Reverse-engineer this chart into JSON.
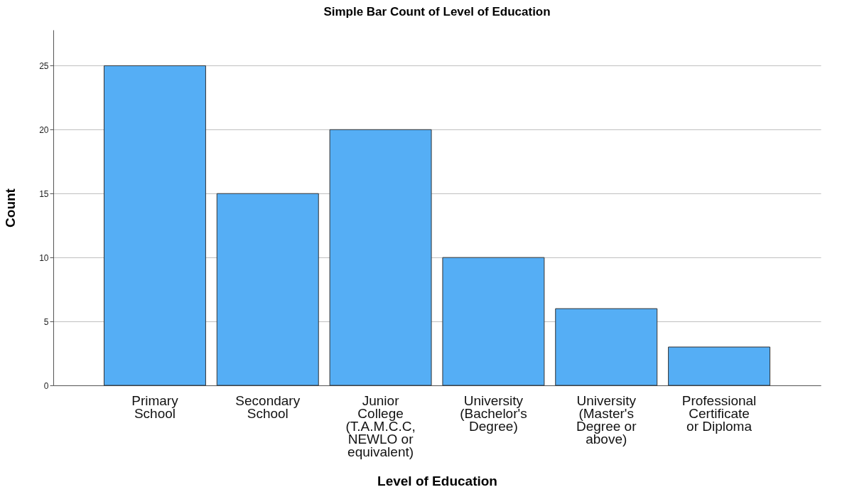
{
  "chart_data": {
    "type": "bar",
    "title": "Simple Bar Count of Level of Education",
    "xlabel": "Level of Education",
    "ylabel": "Count",
    "categories": [
      "Primary School",
      "Secondary School",
      "Junior College (T.A.M.C.C, NEWLO or equivalent)",
      "University (Bachelor's Degree)",
      "University (Master's Degree or above)",
      "Professional Certificate or Diploma"
    ],
    "values": [
      25,
      15,
      20,
      10,
      6,
      3
    ],
    "color": "#55aef5",
    "ylim": [
      0,
      27.8
    ],
    "yticks": [
      0,
      5,
      10,
      15,
      20,
      25
    ],
    "grid": "y"
  }
}
